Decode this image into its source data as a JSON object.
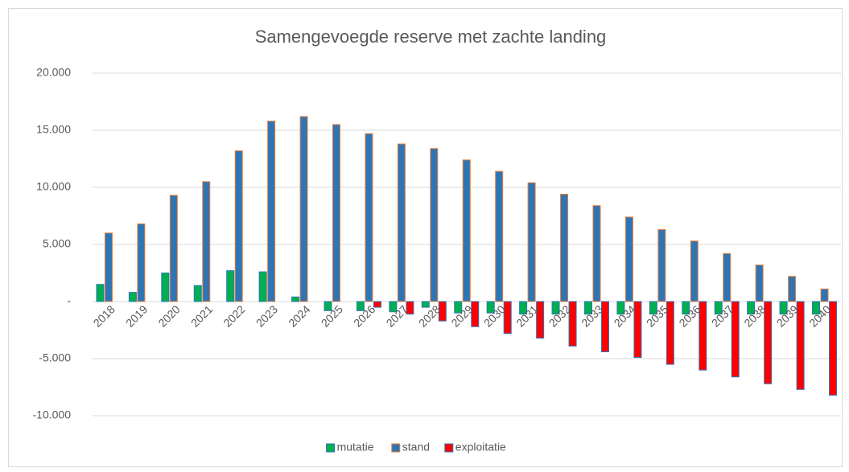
{
  "chart_data": {
    "type": "bar",
    "title": "Samengevoegde reserve met zachte landing",
    "categories": [
      "2018",
      "2019",
      "2020",
      "2021",
      "2022",
      "2023",
      "2024",
      "2025",
      "2026",
      "2027",
      "2028",
      "2029",
      "2030",
      "2031",
      "2032",
      "2033",
      "2034",
      "2035",
      "2036",
      "2037",
      "2038",
      "2039",
      "2040"
    ],
    "series": [
      {
        "name": "mutatie",
        "color": "#00b050",
        "edgecolor": "#2e75b6",
        "values": [
          1500,
          800,
          2500,
          1400,
          2700,
          2600,
          400,
          -800,
          -800,
          -900,
          -500,
          -1000,
          -1000,
          -1100,
          -1100,
          -1100,
          -1100,
          -1100,
          -1100,
          -1100,
          -1100,
          -1100,
          -1100
        ]
      },
      {
        "name": "stand",
        "color": "#2e75b6",
        "edgecolor": "#ed7d31",
        "values": [
          6000,
          6800,
          9300,
          10500,
          13200,
          15800,
          16200,
          15500,
          14700,
          13800,
          13400,
          12400,
          11400,
          10400,
          9400,
          8400,
          7400,
          6300,
          5300,
          4200,
          3200,
          2200,
          1100
        ]
      },
      {
        "name": "exploitatie",
        "color": "#ff0000",
        "edgecolor": "#2e75b6",
        "values": [
          null,
          null,
          null,
          null,
          null,
          null,
          null,
          null,
          -500,
          -1100,
          -1700,
          -2200,
          -2800,
          -3200,
          -3900,
          -4400,
          -4900,
          -5500,
          -6000,
          -6600,
          -7200,
          -7700,
          -8200
        ]
      }
    ],
    "ylim": [
      -10000,
      20000
    ],
    "yticks": [
      {
        "value": -10000,
        "label": "-10.000"
      },
      {
        "value": -5000,
        "label": "-5.000"
      },
      {
        "value": 0,
        "label": "-"
      },
      {
        "value": 5000,
        "label": "5.000"
      },
      {
        "value": 10000,
        "label": "10.000"
      },
      {
        "value": 15000,
        "label": "15.000"
      },
      {
        "value": 20000,
        "label": "20.000"
      }
    ],
    "grid": true,
    "legend": "bottom"
  }
}
